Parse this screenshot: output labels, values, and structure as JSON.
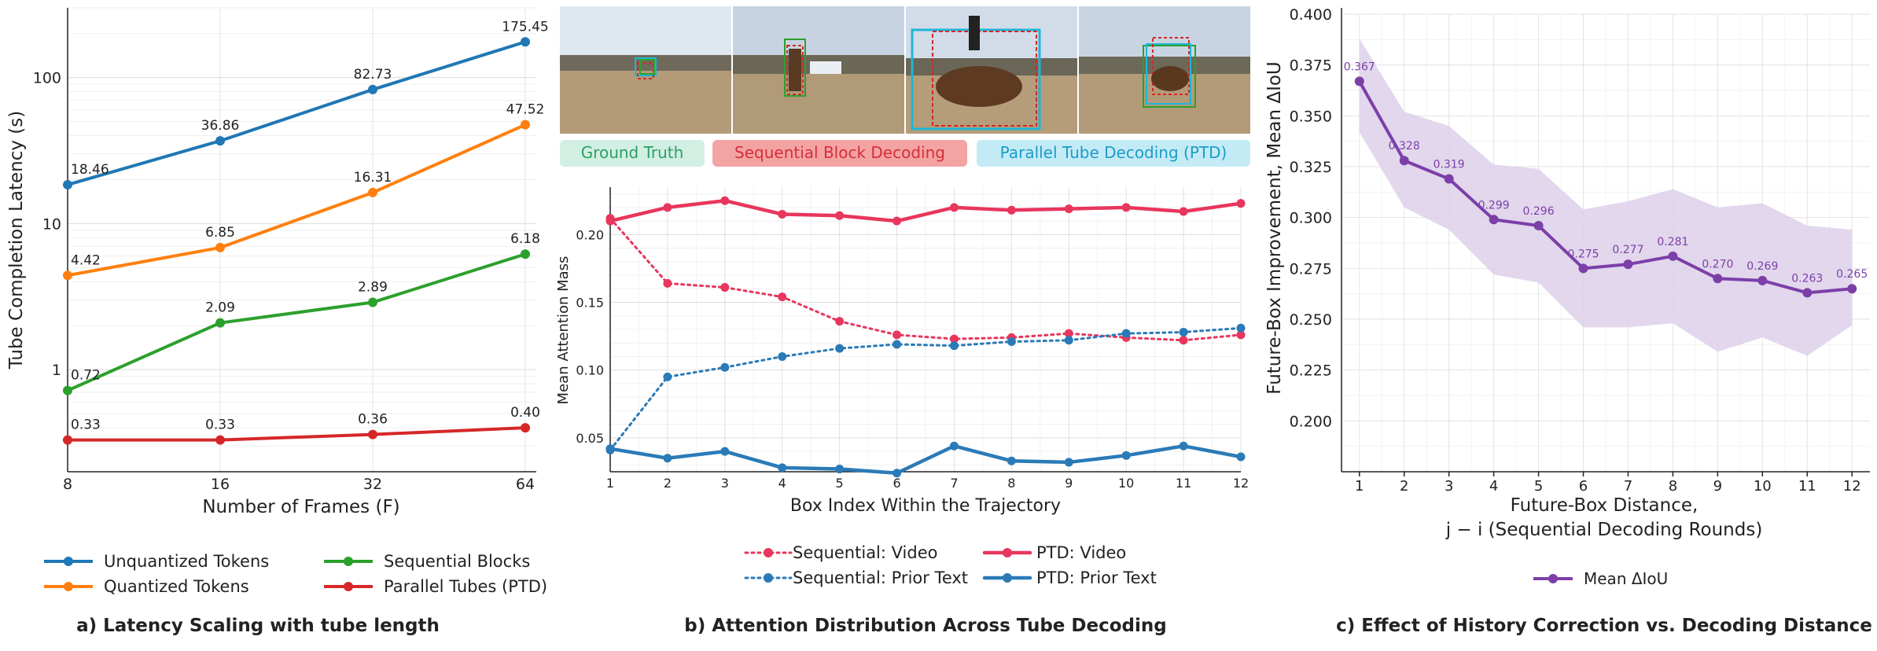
{
  "chart_data": [
    {
      "type": "line",
      "title": "a) Latency Scaling with tube length",
      "xlabel": "Number of Frames (F)",
      "ylabel": "Tube Completion Latency (s)",
      "x": [
        8,
        16,
        32,
        64
      ],
      "x_scale": "log2",
      "y_scale": "log",
      "ylim": [
        0.2,
        300
      ],
      "y_ticks": [
        1,
        10,
        100
      ],
      "grid": true,
      "legend": "bottom",
      "series": [
        {
          "name": "Unquantized Tokens",
          "color": "#1f77b4",
          "values": [
            18.46,
            36.86,
            82.73,
            175.45
          ],
          "labels": [
            "18.46",
            "36.86",
            "82.73",
            "175.45"
          ]
        },
        {
          "name": "Quantized Tokens",
          "color": "#ff7f0e",
          "values": [
            4.42,
            6.85,
            16.31,
            47.52
          ],
          "labels": [
            "4.42",
            "6.85",
            "16.31",
            "47.52"
          ]
        },
        {
          "name": "Sequential Blocks",
          "color": "#2ca02c",
          "values": [
            0.72,
            2.09,
            2.89,
            6.18
          ],
          "labels": [
            "0.72",
            "2.09",
            "2.89",
            "6.18"
          ]
        },
        {
          "name": "Parallel Tubes (PTD)",
          "color": "#d62728",
          "values": [
            0.33,
            0.33,
            0.36,
            0.4
          ],
          "labels": [
            "0.33",
            "0.33",
            "0.36",
            "0.40"
          ]
        }
      ]
    },
    {
      "type": "line",
      "title": "b) Attention Distribution Across Tube Decoding",
      "xlabel": "Box Index Within the Trajectory",
      "ylabel": "Mean Attention Mass",
      "x": [
        1,
        2,
        3,
        4,
        5,
        6,
        7,
        8,
        9,
        10,
        11,
        12
      ],
      "xlim": [
        1,
        12
      ],
      "ylim": [
        0.025,
        0.235
      ],
      "y_ticks": [
        0.05,
        0.1,
        0.15,
        0.2
      ],
      "y_tick_labels": [
        "0.05",
        "0.10",
        "0.15",
        "0.20"
      ],
      "grid": true,
      "legend": "bottom",
      "legend_boxes": [
        {
          "label": "Ground Truth",
          "bg": "#d2efe4",
          "fg": "#2ca063"
        },
        {
          "label": "Sequential Block Decoding",
          "bg": "#f4a3a3",
          "fg": "#d42f3a"
        },
        {
          "label": "Parallel Tube Decoding (PTD)",
          "bg": "#c3ebf6",
          "fg": "#1c9cc8"
        }
      ],
      "series": [
        {
          "name": "Sequential: Video",
          "color": "#e8365c",
          "style": "dotted",
          "values": [
            0.212,
            0.164,
            0.161,
            0.154,
            0.136,
            0.126,
            0.123,
            0.124,
            0.127,
            0.124,
            0.122,
            0.126
          ]
        },
        {
          "name": "Sequential: Prior Text",
          "color": "#2a7ab7",
          "style": "dotted",
          "values": [
            0.041,
            0.095,
            0.102,
            0.11,
            0.116,
            0.119,
            0.118,
            0.121,
            0.122,
            0.127,
            0.128,
            0.131
          ]
        },
        {
          "name": "PTD: Video",
          "color": "#e8365c",
          "style": "solid",
          "values": [
            0.21,
            0.22,
            0.225,
            0.215,
            0.214,
            0.21,
            0.22,
            0.218,
            0.219,
            0.22,
            0.217,
            0.223
          ]
        },
        {
          "name": "PTD: Prior Text",
          "color": "#2a7ab7",
          "style": "solid",
          "values": [
            0.042,
            0.035,
            0.04,
            0.028,
            0.027,
            0.024,
            0.044,
            0.033,
            0.032,
            0.037,
            0.044,
            0.036
          ]
        }
      ]
    },
    {
      "type": "line",
      "title": "c) Effect of History Correction vs. Decoding Distance",
      "xlabel": "Future-Box Distance,",
      "xlabel2": "j − i (Sequential Decoding Rounds)",
      "ylabel": "Future-Box Improvement, Mean ΔIoU",
      "x": [
        1,
        2,
        3,
        4,
        5,
        6,
        7,
        8,
        9,
        10,
        11,
        12
      ],
      "xlim": [
        0.6,
        12.4
      ],
      "ylim": [
        0.175,
        0.4
      ],
      "y_ticks": [
        0.2,
        0.225,
        0.25,
        0.275,
        0.3,
        0.325,
        0.35,
        0.375,
        0.4
      ],
      "y_tick_labels": [
        "0.200",
        "0.225",
        "0.250",
        "0.275",
        "0.300",
        "0.325",
        "0.350",
        "0.375",
        "0.400"
      ],
      "grid": true,
      "legend": "bottom",
      "series": [
        {
          "name": "Mean ΔIoU",
          "color": "#7c3fa8",
          "band_color": "#ddd0ea",
          "values": [
            0.367,
            0.328,
            0.319,
            0.299,
            0.296,
            0.275,
            0.277,
            0.281,
            0.27,
            0.269,
            0.263,
            0.265
          ],
          "labels": [
            "0.367",
            "0.328",
            "0.319",
            "0.299",
            "0.296",
            "0.275",
            "0.277",
            "0.281",
            "0.270",
            "0.269",
            "0.263",
            "0.265"
          ],
          "upper": [
            0.388,
            0.352,
            0.345,
            0.326,
            0.324,
            0.304,
            0.308,
            0.314,
            0.305,
            0.307,
            0.296,
            0.294
          ],
          "lower": [
            0.342,
            0.305,
            0.294,
            0.272,
            0.268,
            0.246,
            0.246,
            0.248,
            0.234,
            0.241,
            0.232,
            0.247
          ]
        }
      ]
    }
  ]
}
